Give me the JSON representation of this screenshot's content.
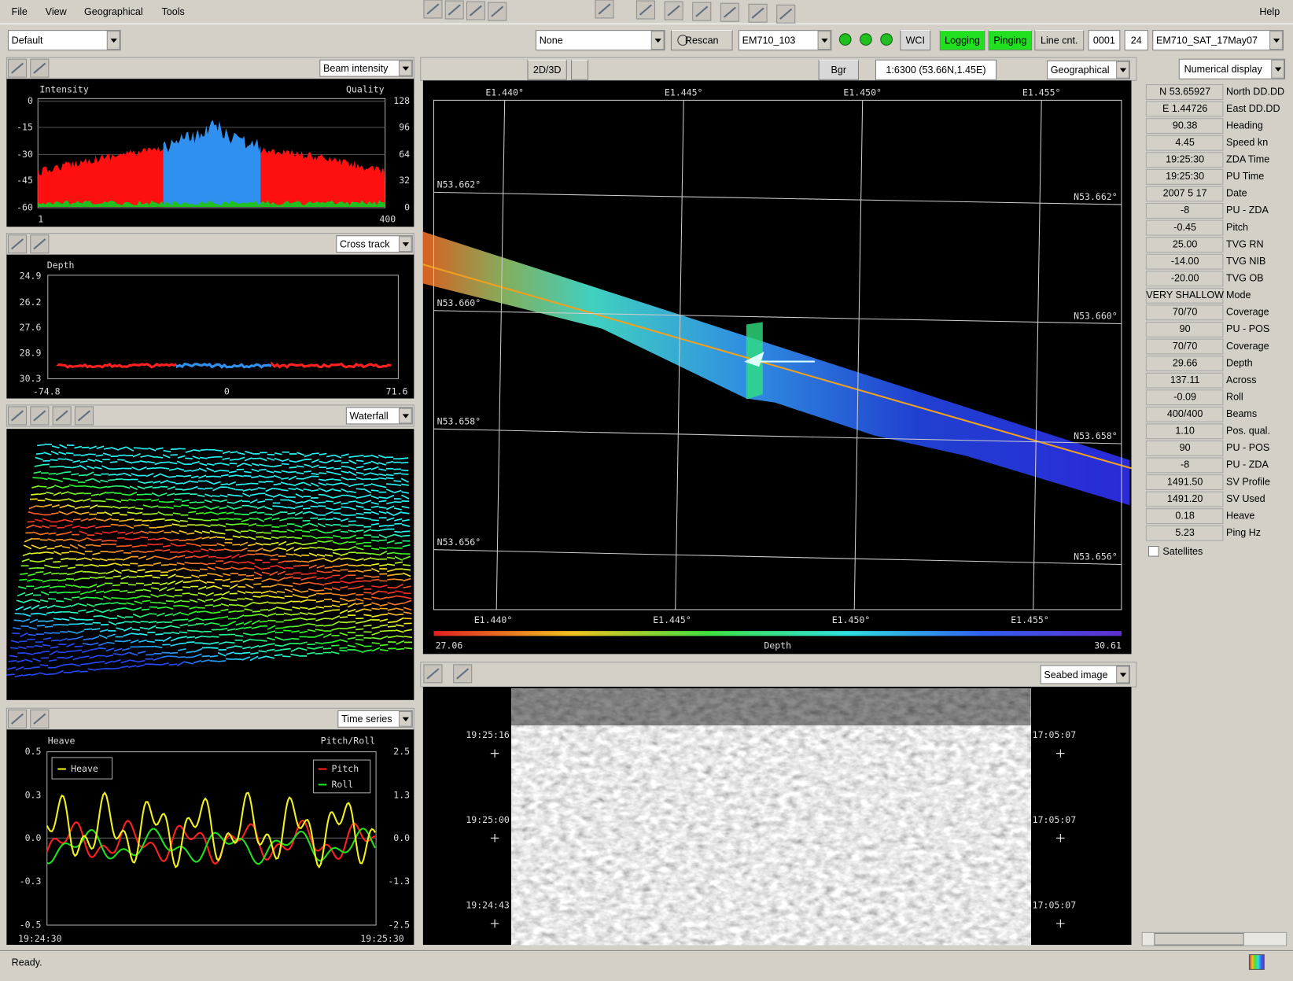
{
  "menu": {
    "items": [
      "File",
      "View",
      "Geographical",
      "Tools"
    ],
    "help": "Help"
  },
  "toolbar": {
    "profile": "Default",
    "source": "None",
    "rescan": "Rescan",
    "sounder": "EM710_103",
    "wci": "WCI",
    "logging": "Logging",
    "pinging": "Pinging",
    "line_cnt": "Line cnt.",
    "line_no": "0001",
    "count": "24",
    "survey": "EM710_SAT_17May07"
  },
  "beam_panel": {
    "dropdown": "Beam intensity",
    "left_label": "Intensity",
    "right_label": "Quality",
    "left_ticks": [
      "0",
      "-15",
      "-30",
      "-45",
      "-60"
    ],
    "right_ticks": [
      "128",
      "96",
      "64",
      "32",
      "0"
    ],
    "x_ticks": [
      "1",
      "400"
    ]
  },
  "cross_panel": {
    "dropdown": "Cross track",
    "label": "Depth",
    "y_ticks": [
      "24.9",
      "26.2",
      "27.6",
      "28.9",
      "30.3"
    ],
    "x_ticks": [
      "-74.8",
      "0",
      "71.6"
    ]
  },
  "waterfall_panel": {
    "dropdown": "Waterfall"
  },
  "time_panel": {
    "dropdown": "Time series",
    "left_label": "Heave",
    "right_label": "Pitch/Roll",
    "left_ticks": [
      "0.5",
      "0.3",
      "0.0",
      "-0.3",
      "-0.5"
    ],
    "right_ticks": [
      "2.5",
      "1.3",
      "0.0",
      "-1.3",
      "-2.5"
    ],
    "x_ticks": [
      "19:24:30",
      "19:25:30"
    ],
    "legend": [
      "Heave",
      "Pitch",
      "Roll"
    ]
  },
  "geo_panel": {
    "mode_button": "2D/3D",
    "bgr": "Bgr",
    "scale": "1:6300 (53.66N,1.45E)",
    "dropdown": "Geographical",
    "lon_labels": [
      "E1.440°",
      "E1.445°",
      "E1.450°",
      "E1.455°"
    ],
    "lat_labels": [
      "N53.662°",
      "N53.660°",
      "N53.658°",
      "N53.656°"
    ],
    "color_min": "27.06",
    "color_label": "Depth",
    "color_max": "30.61"
  },
  "seabed_panel": {
    "dropdown": "Seabed image",
    "left_times": [
      "19:25:16",
      "19:25:00",
      "19:24:43"
    ],
    "right_times": [
      "17:05:07",
      "17:05:07",
      "17:05:07"
    ]
  },
  "numerical_panel": {
    "dropdown": "Numerical display",
    "rows": [
      [
        "N 53.65927",
        "North DD.DD"
      ],
      [
        "E 1.44726",
        "East DD.DD"
      ],
      [
        "90.38",
        "Heading"
      ],
      [
        "4.45",
        "Speed kn"
      ],
      [
        "19:25:30",
        "ZDA Time"
      ],
      [
        "19:25:30",
        "PU Time"
      ],
      [
        "2007 5 17",
        "Date"
      ],
      [
        "-8",
        "PU - ZDA"
      ],
      [
        "-0.45",
        "Pitch"
      ],
      [
        "25.00",
        "TVG RN"
      ],
      [
        "-14.00",
        "TVG NIB"
      ],
      [
        "-20.00",
        "TVG OB"
      ],
      [
        "VERY SHALLOW",
        "Mode"
      ],
      [
        "70/70",
        "Coverage"
      ],
      [
        "90",
        "PU - POS"
      ],
      [
        "70/70",
        "Coverage"
      ],
      [
        "29.66",
        "Depth"
      ],
      [
        "137.11",
        "Across"
      ],
      [
        "-0.09",
        "Roll"
      ],
      [
        "400/400",
        "Beams"
      ],
      [
        "1.10",
        "Pos. qual."
      ],
      [
        "90",
        "PU - POS"
      ],
      [
        "-8",
        "PU - ZDA"
      ],
      [
        "1491.50",
        "SV Profile"
      ],
      [
        "1491.20",
        "SV Used"
      ],
      [
        "0.18",
        "Heave"
      ],
      [
        "5.23",
        "Ping Hz"
      ]
    ],
    "satellites": "Satellites"
  },
  "status": {
    "text": "Ready."
  }
}
